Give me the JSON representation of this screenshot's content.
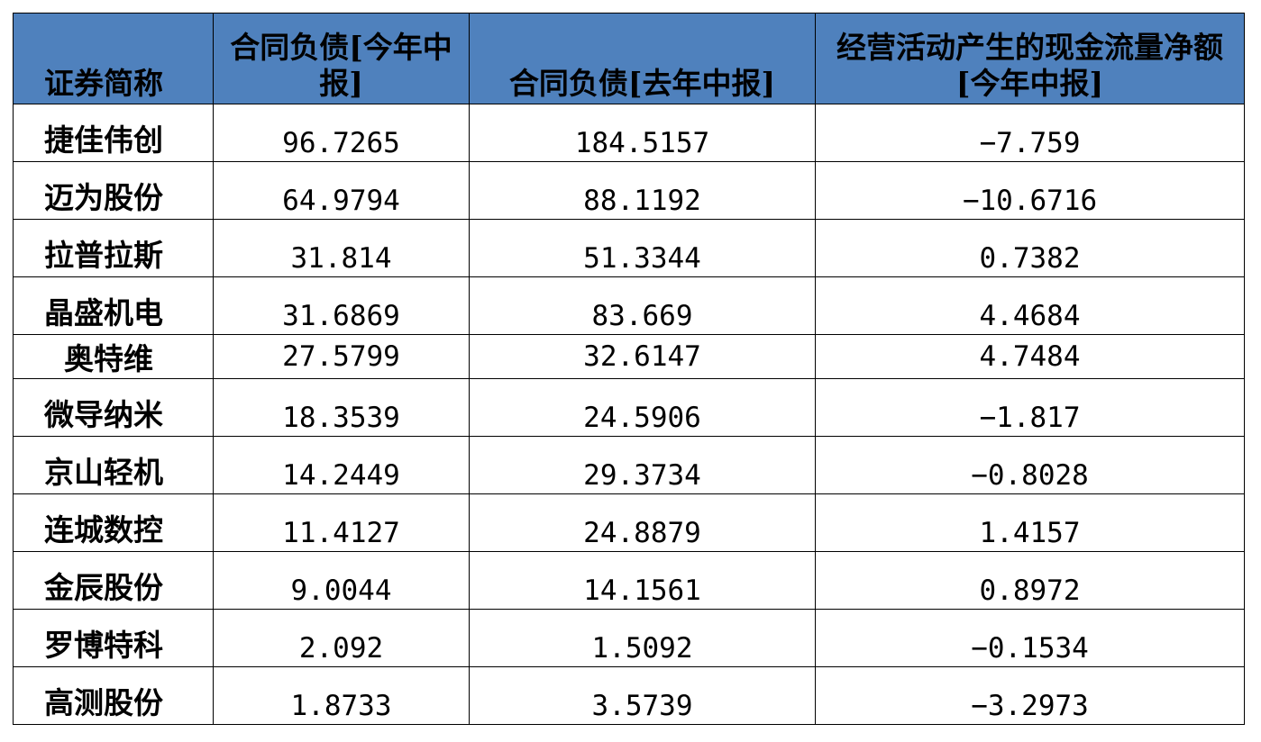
{
  "table": {
    "headers": [
      "证券简称",
      "合同负债[今年中报]",
      "合同负债[去年中报]",
      "经营活动产生的现金流量净额[今年中报]"
    ],
    "rows": [
      [
        "捷佳伟创",
        "96.7265",
        "184.5157",
        "−7.759"
      ],
      [
        "迈为股份",
        "64.9794",
        "88.1192",
        "−10.6716"
      ],
      [
        "拉普拉斯",
        "31.814",
        "51.3344",
        "0.7382"
      ],
      [
        "晶盛机电",
        "31.6869",
        "83.669",
        "4.4684"
      ],
      [
        "奥特维",
        "27.5799",
        "32.6147",
        "4.7484"
      ],
      [
        "微导纳米",
        "18.3539",
        "24.5906",
        "−1.817"
      ],
      [
        "京山轻机",
        "14.2449",
        "29.3734",
        "−0.8028"
      ],
      [
        "连城数控",
        "11.4127",
        "24.8879",
        "1.4157"
      ],
      [
        "金辰股份",
        "9.0044",
        "14.1561",
        "0.8972"
      ],
      [
        "罗博特科",
        "2.092",
        "1.5092",
        "−0.1534"
      ],
      [
        "高测股份",
        "1.8733",
        "3.5739",
        "−3.2973"
      ]
    ]
  },
  "colors": {
    "header_bg": "#4f81bd",
    "border": "#000000"
  }
}
